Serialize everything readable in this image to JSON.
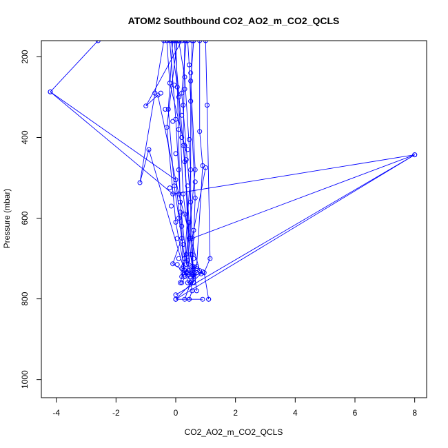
{
  "chart_data": {
    "type": "line",
    "title": "ATOM2 Southbound CO2_AO2_m_CO2_QCLS",
    "xlabel": "CO2_AO2_m_CO2_QCLS",
    "ylabel": "Pressure (mbar)",
    "xlim": [
      -4.5,
      8.4
    ],
    "ylim": [
      1045,
      160
    ],
    "y_reversed": true,
    "grid": false,
    "legend": "none",
    "colors": {
      "series": "#0000ff",
      "axis": "#000000",
      "background": "#ffffff"
    },
    "x_ticks": [
      -4,
      -2,
      0,
      2,
      4,
      6,
      8
    ],
    "x_tick_labels": [
      "-4",
      "-2",
      "0",
      "2",
      "4",
      "6",
      "8"
    ],
    "y_ticks": [
      200,
      400,
      600,
      800,
      1000
    ],
    "y_tick_labels": [
      "200",
      "400",
      "600",
      "800",
      "1000"
    ],
    "series": [
      {
        "x": [
          -2.6,
          -4.2,
          0.0,
          0.2,
          -0.1,
          0.35,
          0.4,
          0.6,
          0.9,
          0.0
        ],
        "y": [
          160,
          287,
          505,
          650,
          713,
          735,
          760,
          745,
          733,
          801
        ]
      },
      {
        "x": [
          -0.4,
          -1.2,
          -0.9,
          0.25,
          0.5,
          0.55,
          0.45
        ],
        "y": [
          160,
          512,
          430,
          720,
          760,
          780,
          801
        ]
      },
      {
        "x": [
          0.2,
          -1.0,
          -0.6,
          0.1,
          0.8,
          0.7,
          0.5,
          0.3
        ],
        "y": [
          160,
          322,
          295,
          540,
          730,
          735,
          760,
          801
        ]
      },
      {
        "x": [
          1.0,
          1.05,
          1.15,
          0.95,
          1.1
        ],
        "y": [
          160,
          320,
          700,
          735,
          801
        ]
      },
      {
        "x": [
          -0.3,
          -0.2,
          0.3,
          0.45,
          0.2
        ],
        "y": [
          160,
          265,
          420,
          730,
          760
        ]
      },
      {
        "x": [
          0.1,
          0.3,
          0.5,
          0.3,
          0.6,
          0.7
        ],
        "y": [
          160,
          250,
          480,
          700,
          720,
          780
        ]
      },
      {
        "x": [
          0.4,
          0.45,
          0.5,
          0.5,
          0.6
        ],
        "y": [
          160,
          220,
          310,
          650,
          760
        ]
      },
      {
        "x": [
          -0.1,
          -0.25,
          -0.05,
          0.3,
          0.2
        ],
        "y": [
          160,
          330,
          520,
          700,
          745
        ]
      },
      {
        "x": [
          0.55,
          0.5,
          0.65,
          0.55
        ],
        "y": [
          160,
          310,
          550,
          740
        ]
      },
      {
        "x": [
          0.0,
          0.05,
          0.15,
          0.4
        ],
        "y": [
          160,
          275,
          560,
          735
        ]
      },
      {
        "x": [
          0.8,
          0.8,
          0.9,
          0.7,
          0.6
        ],
        "y": [
          160,
          385,
          470,
          720,
          735
        ]
      },
      {
        "x": [
          -0.2,
          0.0,
          0.2,
          0.25,
          0.15
        ],
        "y": [
          160,
          355,
          620,
          735,
          760
        ]
      },
      {
        "x": [
          0.3,
          0.25,
          0.45,
          0.35,
          0.5
        ],
        "y": [
          160,
          420,
          610,
          690,
          745
        ]
      },
      {
        "x": [
          -0.15,
          0.1,
          0.25,
          0.55,
          0.45
        ],
        "y": [
          160,
          300,
          540,
          720,
          740
        ]
      },
      {
        "x": [
          0.6,
          0.5,
          0.65,
          0.35
        ],
        "y": [
          160,
          260,
          480,
          715
        ]
      },
      {
        "x": [
          0.05,
          -0.3,
          0.0,
          0.3
        ],
        "y": [
          160,
          375,
          610,
          730
        ]
      },
      {
        "x": [
          0.35,
          0.2,
          0.5,
          0.6
        ],
        "y": [
          160,
          290,
          560,
          760
        ]
      },
      {
        "x": [
          -0.05,
          0.3,
          0.45,
          0.5,
          0.3
        ],
        "y": [
          160,
          460,
          650,
          690,
          745
        ]
      },
      {
        "x": [
          1.0,
          0.55,
          8.0,
          0.0
        ],
        "y": [
          475,
          650,
          443,
          801
        ]
      },
      {
        "x": [
          -4.2,
          -0.1,
          8.0,
          0.0
        ],
        "y": [
          287,
          540,
          443,
          790
        ]
      },
      {
        "x": [
          0.0,
          0.45,
          0.9
        ],
        "y": [
          801,
          801,
          801
        ]
      }
    ],
    "extra_points": [
      {
        "x": 1.1,
        "y": 801
      },
      {
        "x": -0.5,
        "y": 290
      },
      {
        "x": -0.7,
        "y": 290
      },
      {
        "x": -0.35,
        "y": 330
      },
      {
        "x": -0.2,
        "y": 525
      },
      {
        "x": -0.15,
        "y": 570
      },
      {
        "x": 0.1,
        "y": 600
      },
      {
        "x": 0.15,
        "y": 585
      },
      {
        "x": 0.65,
        "y": 510
      },
      {
        "x": 0.4,
        "y": 430
      },
      {
        "x": 0.2,
        "y": 345
      },
      {
        "x": 0.1,
        "y": 380
      },
      {
        "x": 0.35,
        "y": 455
      },
      {
        "x": 0.55,
        "y": 690
      },
      {
        "x": 0.25,
        "y": 665
      },
      {
        "x": 0.05,
        "y": 650
      },
      {
        "x": 0.6,
        "y": 630
      },
      {
        "x": 0.3,
        "y": 590
      },
      {
        "x": 0.4,
        "y": 520
      },
      {
        "x": 0.2,
        "y": 400
      },
      {
        "x": 0.0,
        "y": 440
      },
      {
        "x": 0.1,
        "y": 480
      },
      {
        "x": -0.05,
        "y": 270
      },
      {
        "x": 0.25,
        "y": 320
      },
      {
        "x": 0.45,
        "y": 405
      },
      {
        "x": 0.05,
        "y": 715
      },
      {
        "x": 0.2,
        "y": 725
      },
      {
        "x": 0.4,
        "y": 705
      },
      {
        "x": 0.6,
        "y": 700
      },
      {
        "x": 0.7,
        "y": 725
      },
      {
        "x": 0.85,
        "y": 738
      },
      {
        "x": 0.1,
        "y": 700
      },
      {
        "x": -0.1,
        "y": 360
      },
      {
        "x": 0.3,
        "y": 280
      },
      {
        "x": 0.5,
        "y": 240
      }
    ]
  }
}
